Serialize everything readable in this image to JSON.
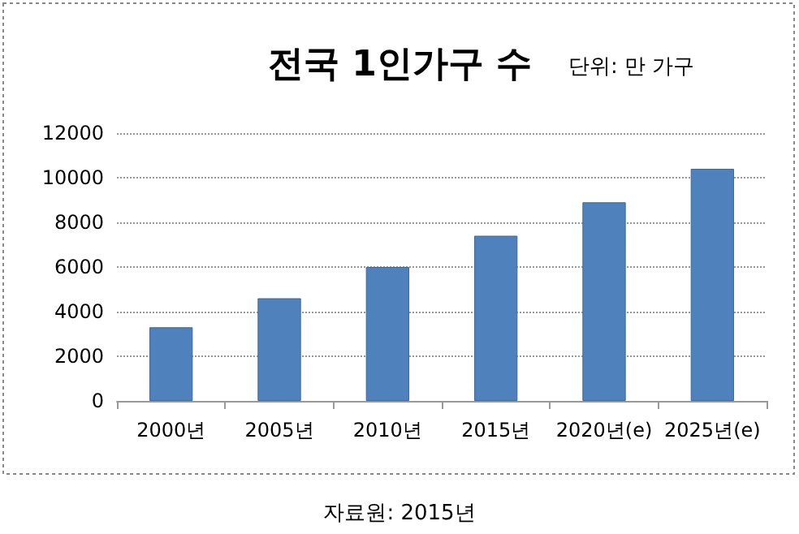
{
  "chart_data": {
    "type": "bar",
    "title": "전국 1인가구 수",
    "subtitle": "단위: 만 가구",
    "categories": [
      "2000년",
      "2005년",
      "2010년",
      "2015년",
      "2020년(e)",
      "2025년(e)"
    ],
    "values": [
      3300,
      4600,
      6000,
      7400,
      8900,
      10400
    ],
    "color": "#4f81bd",
    "ylim": [
      0,
      12000
    ],
    "yticks": [
      0,
      2000,
      4000,
      6000,
      8000,
      10000,
      12000
    ],
    "grid": "y",
    "annotations": [
      "자료원: 2015년"
    ]
  }
}
